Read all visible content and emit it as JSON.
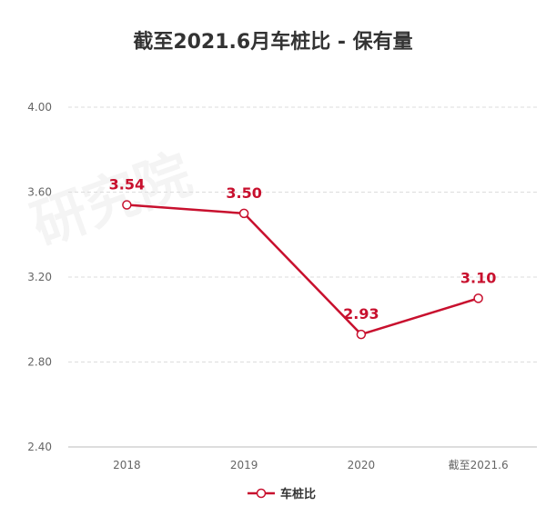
{
  "title": "截至2021.6月车桩比 - 保有量",
  "watermark": "研究院",
  "colors": {
    "series": "#C8102E",
    "grid": "#DDDDDD",
    "axis": "#BBBBBB",
    "tick": "#666666"
  },
  "chart_data": {
    "type": "line",
    "title": "截至2021.6月车桩比 - 保有量",
    "categories": [
      "2018",
      "2019",
      "2020",
      "截至2021.6"
    ],
    "series": [
      {
        "name": "车桩比",
        "values": [
          3.54,
          3.5,
          2.93,
          3.1
        ],
        "labels": [
          "3.54",
          "3.50",
          "2.93",
          "3.10"
        ]
      }
    ],
    "ylim": [
      2.4,
      4.0
    ],
    "yticks": [
      "2.40",
      "2.80",
      "3.20",
      "3.60",
      "4.00"
    ],
    "grid": true,
    "legend": "bottom-center"
  }
}
